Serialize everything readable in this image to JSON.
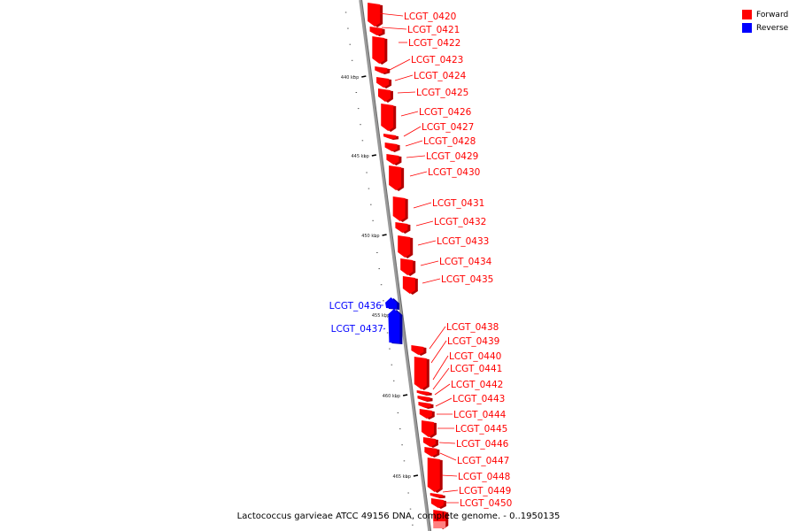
{
  "caption": "Lactococcus garvieae ATCC 49156 DNA, complete genome. - 0..1950135",
  "legend": [
    {
      "label": "Forward",
      "color": "#ff0000"
    },
    {
      "label": "Reverse",
      "color": "#0000ff"
    }
  ],
  "colors": {
    "forward": "#ff0000",
    "forward_shade": "#b30000",
    "forward_light": "#ff8080",
    "reverse": "#0000ff",
    "reverse_shade": "#0000a8",
    "backbone": "#9a9a9a"
  },
  "axis": {
    "unit": "kbp",
    "ticks": [
      {
        "label": "440 kbp"
      },
      {
        "label": "445 kbp"
      },
      {
        "label": "450 kbp"
      },
      {
        "label": "455 kbp"
      },
      {
        "label": "460 kbp"
      },
      {
        "label": "465 kbp"
      }
    ]
  },
  "genes": [
    {
      "name": "LCGT_0420",
      "strand": "forward"
    },
    {
      "name": "LCGT_0421",
      "strand": "forward"
    },
    {
      "name": "LCGT_0422",
      "strand": "forward"
    },
    {
      "name": "LCGT_0423",
      "strand": "forward"
    },
    {
      "name": "LCGT_0424",
      "strand": "forward"
    },
    {
      "name": "LCGT_0425",
      "strand": "forward"
    },
    {
      "name": "LCGT_0426",
      "strand": "forward"
    },
    {
      "name": "LCGT_0427",
      "strand": "forward"
    },
    {
      "name": "LCGT_0428",
      "strand": "forward"
    },
    {
      "name": "LCGT_0429",
      "strand": "forward"
    },
    {
      "name": "LCGT_0430",
      "strand": "forward"
    },
    {
      "name": "LCGT_0431",
      "strand": "forward"
    },
    {
      "name": "LCGT_0432",
      "strand": "forward"
    },
    {
      "name": "LCGT_0433",
      "strand": "forward"
    },
    {
      "name": "LCGT_0434",
      "strand": "forward"
    },
    {
      "name": "LCGT_0435",
      "strand": "forward"
    },
    {
      "name": "LCGT_0436",
      "strand": "reverse"
    },
    {
      "name": "LCGT_0437",
      "strand": "reverse"
    },
    {
      "name": "LCGT_0438",
      "strand": "forward"
    },
    {
      "name": "LCGT_0439",
      "strand": "forward"
    },
    {
      "name": "LCGT_0440",
      "strand": "forward"
    },
    {
      "name": "LCGT_0441",
      "strand": "forward"
    },
    {
      "name": "LCGT_0442",
      "strand": "forward"
    },
    {
      "name": "LCGT_0443",
      "strand": "forward"
    },
    {
      "name": "LCGT_0444",
      "strand": "forward"
    },
    {
      "name": "LCGT_0445",
      "strand": "forward"
    },
    {
      "name": "LCGT_0446",
      "strand": "forward"
    },
    {
      "name": "LCGT_0447",
      "strand": "forward"
    },
    {
      "name": "LCGT_0448",
      "strand": "forward"
    },
    {
      "name": "LCGT_0449",
      "strand": "forward"
    },
    {
      "name": "LCGT_0450",
      "strand": "forward"
    }
  ]
}
